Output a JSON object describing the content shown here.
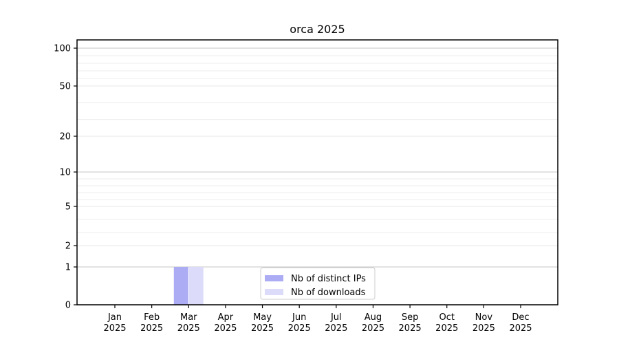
{
  "chart_data": {
    "type": "bar",
    "title": "orca 2025",
    "categories": [
      [
        "Jan",
        "2025"
      ],
      [
        "Feb",
        "2025"
      ],
      [
        "Mar",
        "2025"
      ],
      [
        "Apr",
        "2025"
      ],
      [
        "May",
        "2025"
      ],
      [
        "Jun",
        "2025"
      ],
      [
        "Jul",
        "2025"
      ],
      [
        "Aug",
        "2025"
      ],
      [
        "Sep",
        "2025"
      ],
      [
        "Oct",
        "2025"
      ],
      [
        "Nov",
        "2025"
      ],
      [
        "Dec",
        "2025"
      ]
    ],
    "series": [
      {
        "name": "Nb of distinct IPs",
        "color": "#acacf5",
        "values": [
          0,
          0,
          1,
          0,
          0,
          0,
          0,
          0,
          0,
          0,
          0,
          0
        ]
      },
      {
        "name": "Nb of downloads",
        "color": "#dcdcfa",
        "values": [
          0,
          0,
          1,
          0,
          0,
          0,
          0,
          0,
          0,
          0,
          0,
          0
        ]
      }
    ],
    "yticks": [
      0,
      1,
      2,
      5,
      10,
      20,
      50,
      100
    ],
    "minor_gridlines": [
      3,
      4,
      6,
      7,
      8,
      9,
      30,
      40,
      60,
      70,
      80,
      90
    ],
    "major_gridline_values": [
      1,
      10,
      100
    ],
    "ylim": [
      0,
      110
    ],
    "xlabel": "",
    "ylabel": "",
    "grid": "on",
    "legend_position": "lower center",
    "colors": {
      "major_grid": "#c6c6c6",
      "labeled_grid": "#e7e7e7",
      "minor_grid": "#ececec",
      "axis": "#000000",
      "text": "#000000",
      "background": "#ffffff",
      "legend_border": "#cccccc",
      "legend_background": "#ffffff"
    }
  }
}
